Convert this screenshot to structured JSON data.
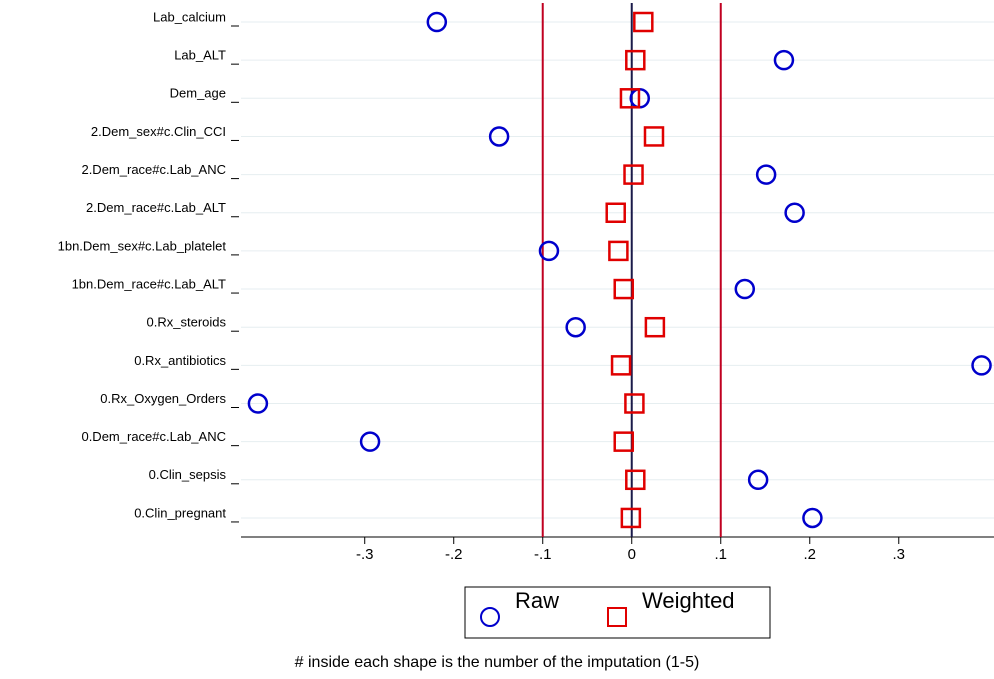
{
  "chart_data": {
    "type": "dot",
    "categories": [
      "Lab_calcium",
      "Lab_ALT",
      "Dem_age",
      "2.Dem_sex#c.Clin_CCI",
      "2.Dem_race#c.Lab_ANC",
      "2.Dem_race#c.Lab_ALT",
      "1bn.Dem_sex#c.Lab_platelet",
      "1bn.Dem_race#c.Lab_ALT",
      "0.Rx_steroids",
      "0.Rx_antibiotics",
      "0.Rx_Oxygen_Orders",
      "0.Dem_race#c.Lab_ANC",
      "0.Clin_sepsis",
      "0.Clin_pregnant"
    ],
    "series": [
      {
        "name": "Raw",
        "color": "#0000cc",
        "marker": "circle",
        "values": [
          -0.219,
          0.171,
          0.009,
          -0.149,
          0.151,
          0.183,
          -0.093,
          0.127,
          -0.063,
          0.393,
          -0.42,
          -0.294,
          0.142,
          0.203
        ]
      },
      {
        "name": "Weighted",
        "color": "#e00000",
        "marker": "square",
        "values": [
          0.013,
          0.004,
          -0.002,
          0.025,
          0.002,
          -0.018,
          -0.015,
          -0.009,
          0.026,
          -0.012,
          0.003,
          -0.009,
          0.004,
          -0.001
        ]
      }
    ],
    "xlim": [
      -0.439,
      0.407
    ],
    "xticks": [
      {
        "value": -0.3,
        "label": "-.3"
      },
      {
        "value": -0.2,
        "label": "-.2"
      },
      {
        "value": -0.1,
        "label": "-.1"
      },
      0,
      {
        "value": 0.1,
        "label": ".1"
      },
      {
        "value": 0.2,
        "label": ".2"
      },
      {
        "value": 0.3,
        "label": ".3"
      }
    ],
    "reference_lines": [
      {
        "value": -0.1,
        "color": "#c00020"
      },
      {
        "value": 0,
        "color": "#1a1a4a"
      },
      {
        "value": 0.1,
        "color": "#c00020"
      }
    ],
    "grid": true,
    "note": "# inside each shape is the number of the imputation (1-5)"
  }
}
